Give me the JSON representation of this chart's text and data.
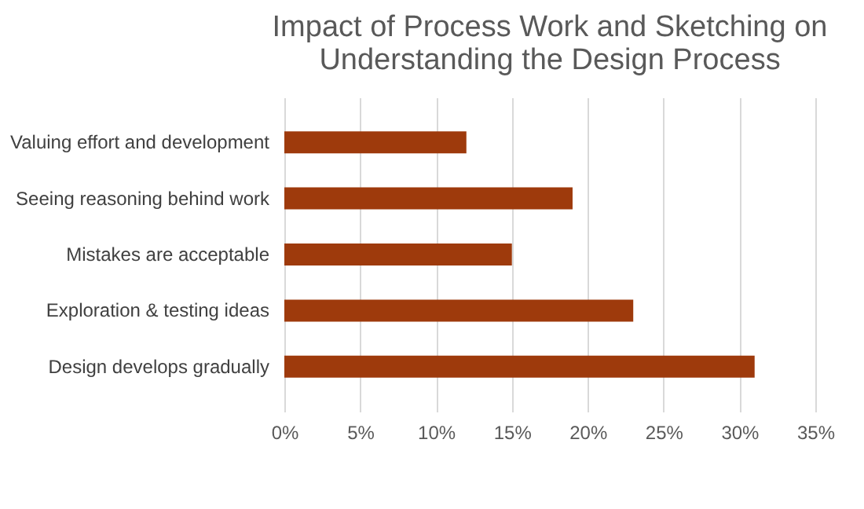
{
  "chart_data": {
    "type": "bar",
    "orientation": "horizontal",
    "title": "Impact of Process Work and Sketching on\nUnderstanding the Design Process",
    "categories": [
      "Valuing effort and development",
      "Seeing reasoning behind work",
      "Mistakes are acceptable",
      "Exploration & testing ideas",
      "Design develops gradually"
    ],
    "values": [
      12,
      19,
      15,
      23,
      31
    ],
    "color": "#9e3a0c",
    "xlim": [
      0,
      35
    ],
    "xticks": [
      {
        "value": 0,
        "label": "0%"
      },
      {
        "value": 5,
        "label": "5%"
      },
      {
        "value": 10,
        "label": "10%"
      },
      {
        "value": 15,
        "label": "15%"
      },
      {
        "value": 20,
        "label": "20%"
      },
      {
        "value": 25,
        "label": "25%"
      },
      {
        "value": 30,
        "label": "30%"
      },
      {
        "value": 35,
        "label": "35%"
      }
    ],
    "grid": "x"
  }
}
